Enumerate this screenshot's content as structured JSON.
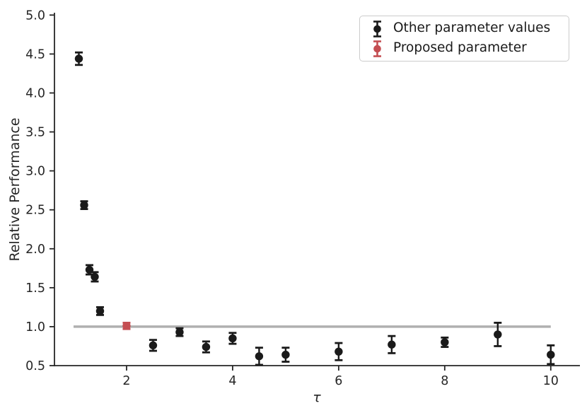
{
  "chart_data": {
    "type": "scatter",
    "title": "",
    "xlabel": "τ",
    "ylabel": "Relative Performance",
    "xlim": [
      0.64,
      10.55
    ],
    "ylim": [
      0.5,
      5.03
    ],
    "xticks": [
      2,
      4,
      6,
      8,
      10
    ],
    "xtick_labels": [
      "2",
      "4",
      "6",
      "8",
      "10"
    ],
    "yticks": [
      0.5,
      1.0,
      1.5,
      2.0,
      2.5,
      3.0,
      3.5,
      4.0,
      4.5,
      5.0
    ],
    "ytick_labels": [
      "0.5",
      "1.0",
      "1.5",
      "2.0",
      "2.5",
      "3.0",
      "3.5",
      "4.0",
      "4.5",
      "5.0"
    ],
    "grid": false,
    "legend_position": "upper right",
    "reference_line": {
      "y": 1.0,
      "x_start": 1.0,
      "x_end": 10.0,
      "color": "#b0b0b0"
    },
    "series": [
      {
        "name": "Other parameter values",
        "type": "errorbar",
        "color": "#1a1a1a",
        "x": [
          1.1,
          1.2,
          1.3,
          1.4,
          1.5,
          2.5,
          3.0,
          3.5,
          4.0,
          4.5,
          5.0,
          6.0,
          7.0,
          8.0,
          9.0,
          10.0
        ],
        "y": [
          4.44,
          2.56,
          1.73,
          1.64,
          1.2,
          0.76,
          0.93,
          0.74,
          0.85,
          0.62,
          0.64,
          0.68,
          0.77,
          0.8,
          0.9,
          0.64
        ],
        "yerr": [
          0.08,
          0.05,
          0.06,
          0.06,
          0.05,
          0.07,
          0.05,
          0.07,
          0.07,
          0.11,
          0.09,
          0.11,
          0.11,
          0.06,
          0.15,
          0.12
        ]
      },
      {
        "name": "Proposed parameter",
        "type": "errorbar",
        "color": "#c44e52",
        "x": [
          2.0
        ],
        "y": [
          1.01
        ],
        "yerr": [
          0.04
        ]
      }
    ]
  },
  "legend": {
    "items": [
      {
        "label": "Other parameter values",
        "color": "#1a1a1a"
      },
      {
        "label": "Proposed parameter",
        "color": "#c44e52"
      }
    ]
  },
  "axes": {
    "spine_color": "#262626",
    "tick_label_color": "#262626",
    "tick_font_size": 17.5
  }
}
